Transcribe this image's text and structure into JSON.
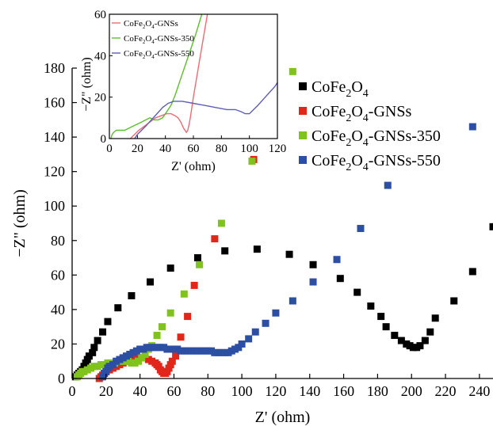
{
  "chart_data": [
    {
      "type": "scatter",
      "role": "main",
      "xlabel": "Z' (ohm)",
      "ylabel": "−Z\" (ohm)",
      "xlim": [
        0,
        248
      ],
      "ylim": [
        0,
        180
      ],
      "xticks": [
        0,
        20,
        40,
        60,
        80,
        100,
        120,
        140,
        160,
        180,
        200,
        220,
        240
      ],
      "yticks": [
        0,
        20,
        40,
        60,
        80,
        100,
        120,
        140,
        160,
        180
      ],
      "grid": false,
      "legend_position": "right",
      "series": [
        {
          "base": "CoFe",
          "sub1": "2",
          "mid": "O",
          "sub2": "4",
          "suffix": "",
          "color": "#000000",
          "points": [
            [
              2,
              1
            ],
            [
              3,
              2
            ],
            [
              4,
              3
            ],
            [
              5,
              4
            ],
            [
              6,
              5
            ],
            [
              7,
              7
            ],
            [
              8,
              9
            ],
            [
              9,
              11
            ],
            [
              10,
              13
            ],
            [
              12,
              15
            ],
            [
              13,
              18
            ],
            [
              15,
              22
            ],
            [
              18,
              27
            ],
            [
              21,
              33
            ],
            [
              27,
              41
            ],
            [
              35,
              48
            ],
            [
              46,
              56
            ],
            [
              58,
              64
            ],
            [
              74,
              70
            ],
            [
              90,
              74
            ],
            [
              109,
              75
            ],
            [
              128,
              72
            ],
            [
              142,
              66
            ],
            [
              158,
              58
            ],
            [
              168,
              50
            ],
            [
              176,
              42
            ],
            [
              182,
              36
            ],
            [
              185,
              30
            ],
            [
              190,
              25
            ],
            [
              194,
              22
            ],
            [
              197,
              20
            ],
            [
              199,
              19
            ],
            [
              201,
              18
            ],
            [
              203,
              18
            ],
            [
              205,
              19
            ],
            [
              208,
              22
            ],
            [
              211,
              27
            ],
            [
              214,
              35
            ],
            [
              225,
              45
            ],
            [
              236,
              62
            ],
            [
              248,
              88
            ]
          ]
        },
        {
          "base": "CoFe",
          "sub1": "2",
          "mid": "O",
          "sub2": "4",
          "suffix": "-GNSs",
          "color": "#e3261b",
          "points": [
            [
              16,
              0
            ],
            [
              17,
              1
            ],
            [
              18,
              2
            ],
            [
              19,
              3
            ],
            [
              20,
              4
            ],
            [
              22,
              5
            ],
            [
              24,
              6
            ],
            [
              26,
              7
            ],
            [
              28,
              8
            ],
            [
              30,
              9
            ],
            [
              33,
              10
            ],
            [
              36,
              11
            ],
            [
              39,
              12
            ],
            [
              42,
              12
            ],
            [
              45,
              11
            ],
            [
              47,
              10
            ],
            [
              49,
              9
            ],
            [
              50,
              8
            ],
            [
              51,
              7
            ],
            [
              52,
              5
            ],
            [
              53,
              4
            ],
            [
              54,
              3
            ],
            [
              55,
              3
            ],
            [
              56,
              4
            ],
            [
              57,
              6
            ],
            [
              58,
              8
            ],
            [
              59,
              10
            ],
            [
              61,
              13
            ],
            [
              64,
              24
            ],
            [
              68,
              36
            ],
            [
              72,
              54
            ],
            [
              84,
              81
            ],
            [
              107,
              127
            ]
          ]
        },
        {
          "base": "CoFe",
          "sub1": "2",
          "mid": "O",
          "sub2": "4",
          "suffix": "-GNSs-350",
          "color": "#7fc31c",
          "points": [
            [
              3,
              1
            ],
            [
              4,
              2
            ],
            [
              5,
              3
            ],
            [
              6,
              4
            ],
            [
              7,
              4
            ],
            [
              9,
              5
            ],
            [
              11,
              6
            ],
            [
              13,
              7
            ],
            [
              15,
              7
            ],
            [
              17,
              8
            ],
            [
              19,
              8
            ],
            [
              21,
              9
            ],
            [
              23,
              9
            ],
            [
              25,
              9
            ],
            [
              27,
              10
            ],
            [
              29,
              10
            ],
            [
              31,
              10
            ],
            [
              33,
              10
            ],
            [
              35,
              9
            ],
            [
              37,
              9
            ],
            [
              39,
              10
            ],
            [
              41,
              12
            ],
            [
              43,
              14
            ],
            [
              45,
              17
            ],
            [
              47,
              19
            ],
            [
              50,
              25
            ],
            [
              53,
              30
            ],
            [
              58,
              38
            ],
            [
              66,
              49
            ],
            [
              75,
              66
            ],
            [
              88,
              90
            ],
            [
              106,
              126
            ],
            [
              130,
              178
            ]
          ]
        },
        {
          "base": "CoFe",
          "sub1": "2",
          "mid": "O",
          "sub2": "4",
          "suffix": "-GNSs-550",
          "color": "#2d4fa3",
          "points": [
            [
              18,
              1
            ],
            [
              19,
              3
            ],
            [
              20,
              4
            ],
            [
              21,
              6
            ],
            [
              22,
              7
            ],
            [
              24,
              8
            ],
            [
              26,
              10
            ],
            [
              28,
              11
            ],
            [
              30,
              12
            ],
            [
              32,
              13
            ],
            [
              34,
              14
            ],
            [
              36,
              15
            ],
            [
              38,
              16
            ],
            [
              40,
              17
            ],
            [
              42,
              17
            ],
            [
              44,
              18
            ],
            [
              46,
              18
            ],
            [
              48,
              18
            ],
            [
              50,
              18
            ],
            [
              52,
              18
            ],
            [
              54,
              18
            ],
            [
              56,
              17
            ],
            [
              58,
              17
            ],
            [
              60,
              17
            ],
            [
              62,
              17
            ],
            [
              64,
              16
            ],
            [
              66,
              16
            ],
            [
              68,
              16
            ],
            [
              70,
              16
            ],
            [
              72,
              16
            ],
            [
              74,
              16
            ],
            [
              76,
              16
            ],
            [
              78,
              16
            ],
            [
              80,
              16
            ],
            [
              82,
              16
            ],
            [
              84,
              15
            ],
            [
              86,
              15
            ],
            [
              88,
              15
            ],
            [
              90,
              15
            ],
            [
              92,
              15
            ],
            [
              94,
              16
            ],
            [
              96,
              17
            ],
            [
              98,
              18
            ],
            [
              100,
              20
            ],
            [
              104,
              23
            ],
            [
              108,
              27
            ],
            [
              114,
              32
            ],
            [
              120,
              38
            ],
            [
              130,
              45
            ],
            [
              142,
              56
            ],
            [
              156,
              69
            ],
            [
              170,
              87
            ],
            [
              186,
              112
            ],
            [
              236,
              146
            ]
          ]
        }
      ]
    },
    {
      "type": "line",
      "role": "inset",
      "xlabel": "Z' (ohm)",
      "ylabel": "−Z\" (ohm)",
      "xlim": [
        0,
        120
      ],
      "ylim": [
        0,
        60
      ],
      "xticks": [
        0,
        20,
        40,
        60,
        80,
        100,
        120
      ],
      "yticks": [
        0,
        20,
        40,
        60
      ],
      "grid": false,
      "legend_position": "top-left",
      "series": [
        {
          "base": "CoFe",
          "sub1": "2",
          "mid": "O",
          "sub2": "4",
          "suffix": "-GNSs",
          "color": "#f06a75",
          "points": [
            [
              15,
              0
            ],
            [
              18,
              2
            ],
            [
              21,
              4
            ],
            [
              25,
              6
            ],
            [
              29,
              8
            ],
            [
              33,
              10
            ],
            [
              37,
              11
            ],
            [
              41,
              12
            ],
            [
              44,
              12
            ],
            [
              47,
              11
            ],
            [
              49,
              10
            ],
            [
              51,
              8
            ],
            [
              53,
              5
            ],
            [
              55,
              3
            ],
            [
              56,
              4
            ],
            [
              57,
              7
            ],
            [
              58,
              11
            ],
            [
              60,
              20
            ],
            [
              62,
              28
            ],
            [
              65,
              40
            ],
            [
              68,
              52
            ],
            [
              70,
              60
            ]
          ]
        },
        {
          "base": "CoFe",
          "sub1": "2",
          "mid": "O",
          "sub2": "4",
          "suffix": "-GNSs-350",
          "color": "#5cbf2a",
          "points": [
            [
              1,
              0
            ],
            [
              2,
              2
            ],
            [
              3,
              3
            ],
            [
              5,
              4
            ],
            [
              8,
              4
            ],
            [
              11,
              4
            ],
            [
              14,
              5
            ],
            [
              17,
              6
            ],
            [
              20,
              7
            ],
            [
              23,
              8
            ],
            [
              26,
              9
            ],
            [
              29,
              10
            ],
            [
              32,
              9
            ],
            [
              35,
              9
            ],
            [
              38,
              10
            ],
            [
              41,
              13
            ],
            [
              44,
              16
            ],
            [
              47,
              21
            ],
            [
              50,
              27
            ],
            [
              54,
              35
            ],
            [
              58,
              43
            ],
            [
              62,
              51
            ],
            [
              66,
              60
            ]
          ]
        },
        {
          "base": "CoFe",
          "sub1": "2",
          "mid": "O",
          "sub2": "4",
          "suffix": "-GNSs-550",
          "color": "#5e5eb6",
          "points": [
            [
              18,
              0
            ],
            [
              20,
              2
            ],
            [
              23,
              4
            ],
            [
              26,
              6
            ],
            [
              30,
              9
            ],
            [
              34,
              12
            ],
            [
              38,
              15
            ],
            [
              42,
              17
            ],
            [
              46,
              18
            ],
            [
              52,
              18
            ],
            [
              60,
              17
            ],
            [
              68,
              16
            ],
            [
              76,
              15
            ],
            [
              84,
              14
            ],
            [
              90,
              14
            ],
            [
              94,
              13
            ],
            [
              97,
              12
            ],
            [
              100,
              12
            ],
            [
              103,
              14
            ],
            [
              106,
              16
            ],
            [
              110,
              19
            ],
            [
              114,
              22
            ],
            [
              118,
              25
            ],
            [
              120,
              27
            ]
          ]
        }
      ]
    }
  ]
}
